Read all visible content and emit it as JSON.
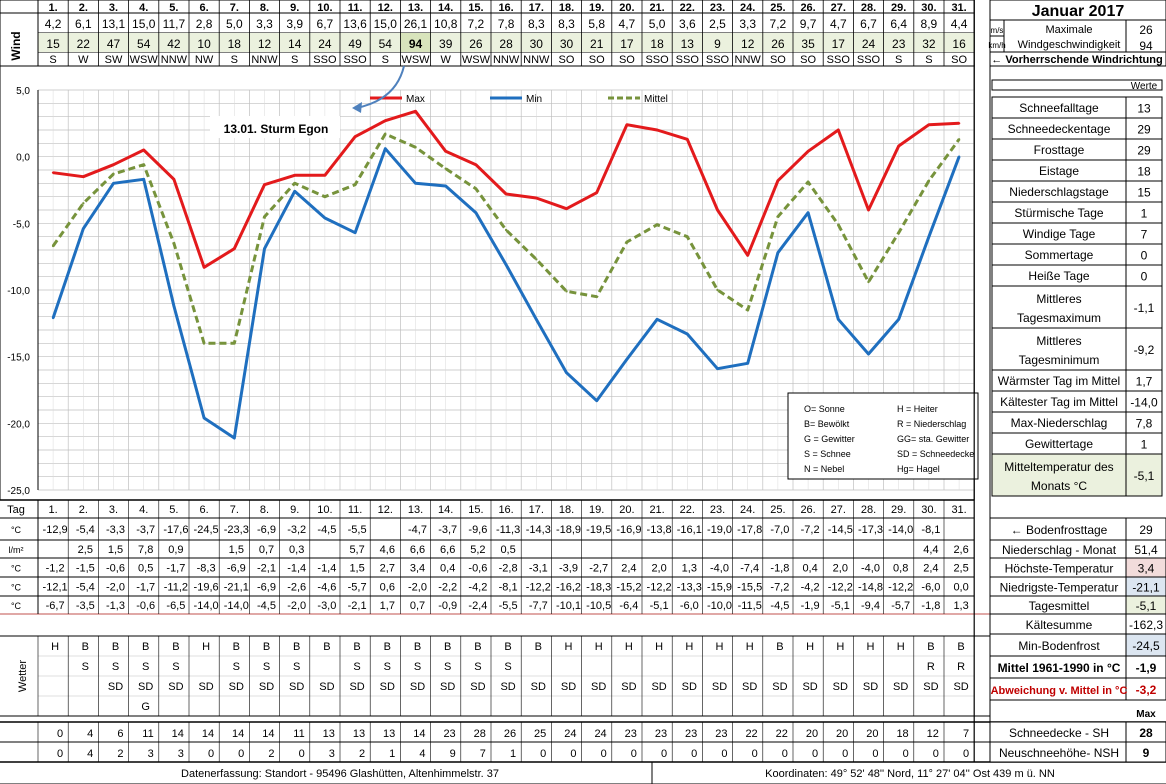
{
  "title": "Januar 2017",
  "days": [
    "1.",
    "2.",
    "3.",
    "4.",
    "5.",
    "6.",
    "7.",
    "8.",
    "9.",
    "10.",
    "11.",
    "12.",
    "13.",
    "14.",
    "15.",
    "16.",
    "17.",
    "18.",
    "19.",
    "20.",
    "21.",
    "22.",
    "23.",
    "24.",
    "25.",
    "26.",
    "27.",
    "28.",
    "29.",
    "30.",
    "31."
  ],
  "wind": {
    "label": "Wind",
    "ms": [
      "4,2",
      "6,1",
      "13,1",
      "15,0",
      "11,7",
      "2,8",
      "5,0",
      "3,3",
      "3,9",
      "6,7",
      "13,6",
      "15,0",
      "26,1",
      "10,8",
      "7,2",
      "7,8",
      "8,3",
      "8,3",
      "5,8",
      "4,7",
      "5,0",
      "3,6",
      "2,5",
      "3,3",
      "7,2",
      "9,7",
      "4,7",
      "6,7",
      "6,4",
      "8,9",
      "4,4"
    ],
    "kmh": [
      "15",
      "22",
      "47",
      "54",
      "42",
      "10",
      "18",
      "12",
      "14",
      "24",
      "49",
      "54",
      "94",
      "39",
      "26",
      "28",
      "30",
      "30",
      "21",
      "17",
      "18",
      "13",
      "9",
      "12",
      "26",
      "35",
      "17",
      "24",
      "23",
      "32",
      "16"
    ],
    "dir": [
      "S",
      "W",
      "SW",
      "WSW",
      "NNW",
      "NW",
      "S",
      "NNW",
      "S",
      "SSO",
      "SSO",
      "S",
      "WSW",
      "W",
      "WSW",
      "NNW",
      "NNW",
      "SO",
      "SO",
      "SO",
      "SSO",
      "SSO",
      "SSO",
      "NNW",
      "SO",
      "SO",
      "SSO",
      "SSO",
      "S",
      "S",
      "SO"
    ],
    "highlight_index": 12,
    "highlight_color": "#d8e4bc",
    "unit_ms": "m/s",
    "unit_kmh": "km/h",
    "max_label_1": "Maximale",
    "max_label_2": "Windgeschwindigkeit",
    "max_ms": "26",
    "max_kmh": "94",
    "dir_note": "← Vorherrschende Windrichtung"
  },
  "chart_data": {
    "type": "line",
    "categories": [
      "1.",
      "2.",
      "3.",
      "4.",
      "5.",
      "6.",
      "7.",
      "8.",
      "9.",
      "10.",
      "11.",
      "12.",
      "13.",
      "14.",
      "15.",
      "16.",
      "17.",
      "18.",
      "19.",
      "20.",
      "21.",
      "22.",
      "23.",
      "24.",
      "25.",
      "26.",
      "27.",
      "28.",
      "29.",
      "30.",
      "31."
    ],
    "ylim": [
      -25,
      5
    ],
    "yticks": [
      "5,0",
      "0,0",
      "-5,0",
      "-10,0",
      "-15,0",
      "-20,0",
      "-25,0"
    ],
    "grid": true,
    "legend_position": "top",
    "annotation": "13.01. Sturm Egon",
    "series": [
      {
        "name": "Max",
        "color": "#e31a1c",
        "dash": false,
        "values": [
          -1.2,
          -1.5,
          -0.6,
          0.5,
          -1.7,
          -8.3,
          -6.9,
          -2.1,
          -1.4,
          -1.4,
          1.5,
          2.7,
          3.4,
          0.4,
          -0.6,
          -2.8,
          -3.1,
          -3.9,
          -2.7,
          2.4,
          2.0,
          1.3,
          -4.0,
          -7.4,
          -1.8,
          0.4,
          2.0,
          -4.0,
          0.8,
          2.4,
          2.5
        ]
      },
      {
        "name": "Min",
        "color": "#1f6fbf",
        "dash": false,
        "values": [
          -12.1,
          -5.4,
          -2.0,
          -1.7,
          -11.2,
          -19.6,
          -21.1,
          -6.9,
          -2.6,
          -4.6,
          -5.7,
          0.6,
          -2.0,
          -2.2,
          -4.2,
          -8.1,
          -12.2,
          -16.2,
          -18.3,
          -15.2,
          -12.2,
          -13.3,
          -15.9,
          -15.5,
          -7.2,
          -4.2,
          -12.2,
          -14.8,
          -12.2,
          -6.0,
          0.0
        ]
      },
      {
        "name": "Mittel",
        "color": "#77933c",
        "dash": true,
        "values": [
          -6.7,
          -3.5,
          -1.3,
          -0.6,
          -6.5,
          -14.0,
          -14.0,
          -4.5,
          -2.0,
          -3.0,
          -2.1,
          1.7,
          0.7,
          -0.9,
          -2.4,
          -5.5,
          -7.7,
          -10.1,
          -10.5,
          -6.4,
          -5.1,
          -6.0,
          -10.0,
          -11.5,
          -4.5,
          -1.9,
          -5.1,
          -9.4,
          -5.7,
          -1.8,
          1.3
        ]
      }
    ]
  },
  "weather_legend": [
    [
      "O= Sonne",
      "H = Heiter"
    ],
    [
      "B= Bewölkt",
      "R = Niederschlag"
    ],
    [
      "G = Gewitter",
      "GG= sta. Gewitter"
    ],
    [
      "S = Schnee",
      "SD = Schneedecke"
    ],
    [
      "N = Nebel",
      "Hg= Hagel"
    ]
  ],
  "stats": {
    "header": "Werte",
    "rows": [
      {
        "label": "Schneefalltage",
        "value": "13"
      },
      {
        "label": "Schneedeckentage",
        "value": "29"
      },
      {
        "label": "Frosttage",
        "value": "29"
      },
      {
        "label": "Eistage",
        "value": "18"
      },
      {
        "label": "Niederschlagstage",
        "value": "15"
      },
      {
        "label": "Stürmische Tage",
        "value": "1"
      },
      {
        "label": "Windige Tage",
        "value": "7"
      },
      {
        "label": "Sommertage",
        "value": "0"
      },
      {
        "label": "Heiße Tage",
        "value": "0"
      },
      {
        "label": "Mittleres Tagesmaximum",
        "value": "-1,1"
      },
      {
        "label": "Mittleres Tagesminimum",
        "value": "-9,2"
      },
      {
        "label": "Wärmster Tag im Mittel",
        "value": "1,7"
      },
      {
        "label": "Kältester Tag im Mittel",
        "value": "-14,0"
      },
      {
        "label": "Max-Niederschlag",
        "value": "7,8"
      },
      {
        "label": "Gewittertage",
        "value": "1"
      },
      {
        "label": "Mitteltemperatur des Monats °C",
        "value": "-5,1"
      }
    ]
  },
  "table": {
    "tag_label": "Tag",
    "rows": [
      {
        "unit": "°C",
        "values": [
          "-12,9",
          "-5,4",
          "-3,3",
          "-3,7",
          "-17,6",
          "-24,5",
          "-23,3",
          "-6,9",
          "-3,2",
          "-4,5",
          "-5,5",
          "",
          "-4,7",
          "-3,7",
          "-9,6",
          "-11,3",
          "-14,3",
          "-18,9",
          "-19,5",
          "-16,9",
          "-13,8",
          "-16,1",
          "-19,0",
          "-17,8",
          "-7,0",
          "-7,2",
          "-14,5",
          "-17,3",
          "-14,0",
          "-8,1",
          ""
        ],
        "label": "← Bodenfrosttage",
        "value": "29",
        "value_bg": "#ffffff"
      },
      {
        "unit": "l/m²",
        "values": [
          "",
          "2,5",
          "1,5",
          "7,8",
          "0,9",
          "",
          "1,5",
          "0,7",
          "0,3",
          "",
          "5,7",
          "4,6",
          "6,6",
          "6,6",
          "5,2",
          "0,5",
          "",
          "",
          "",
          "",
          "",
          "",
          "",
          "",
          "",
          "",
          "",
          "",
          "",
          "4,4",
          "2,6"
        ],
        "label": "Niederschlag - Monat",
        "value": "51,4",
        "value_bg": "#ffffff"
      },
      {
        "unit": "°C",
        "values": [
          "-1,2",
          "-1,5",
          "-0,6",
          "0,5",
          "-1,7",
          "-8,3",
          "-6,9",
          "-2,1",
          "-1,4",
          "-1,4",
          "1,5",
          "2,7",
          "3,4",
          "0,4",
          "-0,6",
          "-2,8",
          "-3,1",
          "-3,9",
          "-2,7",
          "2,4",
          "2,0",
          "1,3",
          "-4,0",
          "-7,4",
          "-1,8",
          "0,4",
          "2,0",
          "-4,0",
          "0,8",
          "2,4",
          "2,5"
        ],
        "label": "Höchste-Temperatur",
        "value": "3,4",
        "value_bg": "#f2dcdb"
      },
      {
        "unit": "°C",
        "values": [
          "-12,1",
          "-5,4",
          "-2,0",
          "-1,7",
          "-11,2",
          "-19,6",
          "-21,1",
          "-6,9",
          "-2,6",
          "-4,6",
          "-5,7",
          "0,6",
          "-2,0",
          "-2,2",
          "-4,2",
          "-8,1",
          "-12,2",
          "-16,2",
          "-18,3",
          "-15,2",
          "-12,2",
          "-13,3",
          "-15,9",
          "-15,5",
          "-7,2",
          "-4,2",
          "-12,2",
          "-14,8",
          "-12,2",
          "-6,0",
          "0,0"
        ],
        "label": "Niedrigste-Temperatur",
        "value": "-21,1",
        "value_bg": "#dce6f1"
      },
      {
        "unit": "°C",
        "values": [
          "-6,7",
          "-3,5",
          "-1,3",
          "-0,6",
          "-6,5",
          "-14,0",
          "-14,0",
          "-4,5",
          "-2,0",
          "-3,0",
          "-2,1",
          "1,7",
          "0,7",
          "-0,9",
          "-2,4",
          "-5,5",
          "-7,7",
          "-10,1",
          "-10,5",
          "-6,4",
          "-5,1",
          "-6,0",
          "-10,0",
          "-11,5",
          "-4,5",
          "-1,9",
          "-5,1",
          "-9,4",
          "-5,7",
          "-1,8",
          "1,3"
        ],
        "label": "Tagesmittel",
        "value": "-5,1",
        "value_bg": "#ebf1de"
      }
    ],
    "extra": [
      {
        "label": "Kältesumme",
        "value": "-162,3",
        "value_bg": "#ffffff"
      },
      {
        "label": "Min-Bodenfrost",
        "value": "-24,5",
        "value_bg": "#dce6f1"
      },
      {
        "label": "Mittel 1961-1990 in °C",
        "value": "-1,9",
        "value_bg": "#ffffff"
      },
      {
        "label": "Abweichung v. Mittel in °C",
        "value": "-3,2",
        "value_bg": "#ffffff"
      }
    ],
    "max_label": "Max",
    "weather_label": "Wetter",
    "weather_rows": [
      [
        "H",
        "B",
        "B",
        "B",
        "B",
        "H",
        "B",
        "B",
        "B",
        "B",
        "B",
        "B",
        "B",
        "B",
        "B",
        "B",
        "B",
        "H",
        "H",
        "H",
        "H",
        "H",
        "H",
        "H",
        "B",
        "H",
        "H",
        "H",
        "H",
        "B",
        "B"
      ],
      [
        "",
        "S",
        "S",
        "S",
        "S",
        "",
        "S",
        "S",
        "S",
        "",
        "S",
        "S",
        "S",
        "S",
        "S",
        "S",
        "",
        "",
        "",
        "",
        "",
        "",
        "",
        "",
        "",
        "",
        "",
        "",
        "",
        "R",
        "R"
      ],
      [
        "",
        "",
        "SD",
        "SD",
        "SD",
        "SD",
        "SD",
        "SD",
        "SD",
        "SD",
        "SD",
        "SD",
        "SD",
        "SD",
        "SD",
        "SD",
        "SD",
        "SD",
        "SD",
        "SD",
        "SD",
        "SD",
        "SD",
        "SD",
        "SD",
        "SD",
        "SD",
        "SD",
        "SD",
        "SD",
        "SD"
      ],
      [
        "",
        "",
        "",
        "G",
        "",
        "",
        "",
        "",
        "",
        "",
        "",
        "",
        "",
        "",
        "",
        "",
        "",
        "",
        "",
        "",
        "",
        "",
        "",
        "",
        "",
        "",
        "",
        "",
        "",
        "",
        ""
      ]
    ],
    "snow_rows": [
      {
        "values": [
          "0",
          "4",
          "6",
          "11",
          "14",
          "14",
          "14",
          "14",
          "11",
          "13",
          "13",
          "13",
          "14",
          "23",
          "28",
          "26",
          "25",
          "24",
          "24",
          "23",
          "23",
          "23",
          "23",
          "22",
          "22",
          "20",
          "20",
          "20",
          "18",
          "12",
          "7"
        ],
        "label": "Schneedecke - SH",
        "value": "28"
      },
      {
        "values": [
          "0",
          "4",
          "2",
          "3",
          "3",
          "0",
          "0",
          "2",
          "0",
          "3",
          "2",
          "1",
          "4",
          "9",
          "7",
          "1",
          "0",
          "0",
          "0",
          "0",
          "0",
          "0",
          "0",
          "0",
          "0",
          "0",
          "0",
          "0",
          "0",
          "0",
          "0"
        ],
        "label": "Neuschneehöhe- NSH",
        "value": "9"
      }
    ]
  },
  "footer": {
    "left": "Datenerfassung:  Standort -  95496  Glashütten, Altenhimmelstr. 37",
    "right": "Koordinaten:  49° 52' 48'' Nord,   11° 27' 04'' Ost   439 m ü. NN"
  }
}
